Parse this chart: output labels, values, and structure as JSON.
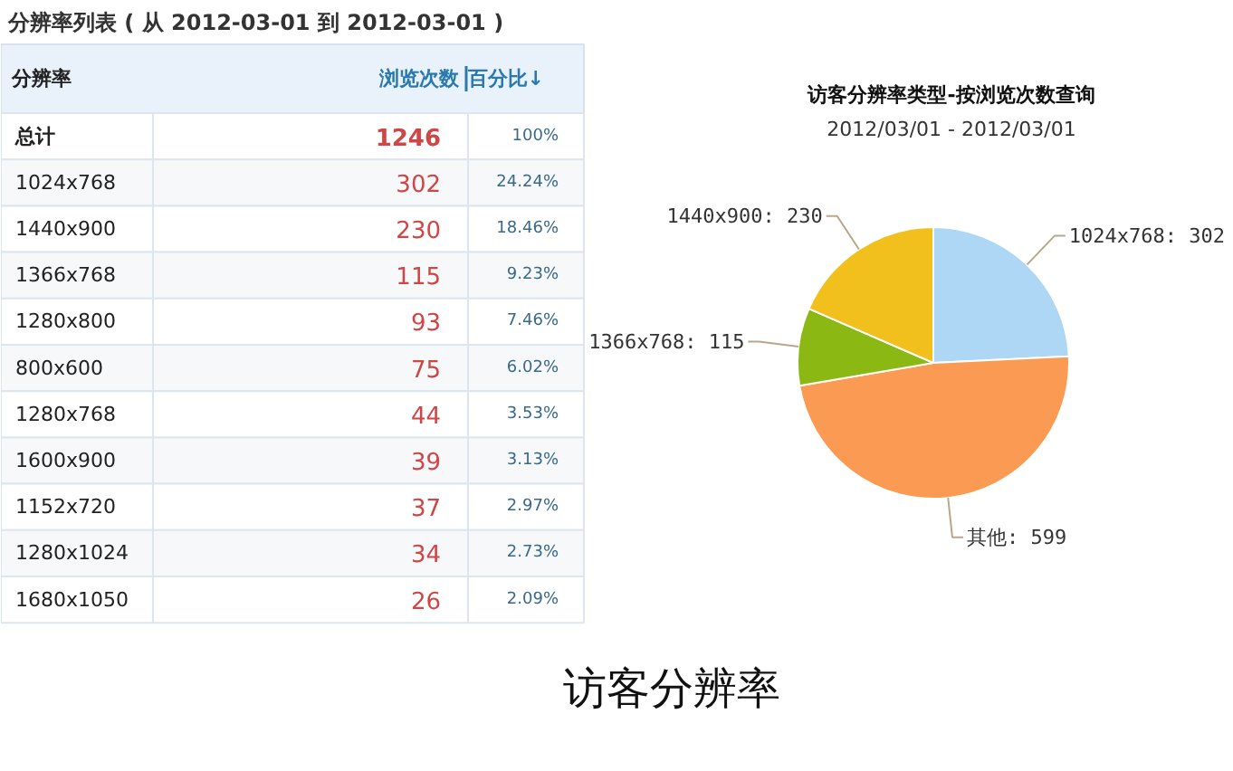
{
  "chart_data": [
    {
      "type": "other",
      "title": "分辨率列表 ( 从 2012-03-01 到 2012-03-01 )",
      "annotations": [
        "分辨率",
        "浏览次数",
        "百分比↓",
        "总计",
        "1246",
        "100%",
        "1024x768",
        "302",
        "24.24%",
        "1440x900",
        "230",
        "18.46%",
        "1366x768",
        "115",
        "9.23%",
        "1280x800",
        "93",
        "7.46%",
        "800x600",
        "75",
        "6.02%",
        "1280x768",
        "44",
        "3.53%",
        "1600x900",
        "39",
        "3.13%",
        "1152x720",
        "37",
        "2.97%",
        "1280x1024",
        "34",
        "2.73%",
        "1680x1050",
        "26",
        "2.09%"
      ]
    },
    {
      "type": "pie",
      "title": "访客分辨率类型-按浏览次数查询",
      "subtitle": "2012/03/01 - 2012/03/01",
      "categories": [
        "1024x768",
        "其他",
        "1366x768",
        "1440x900"
      ],
      "values": [
        302,
        599,
        115,
        230
      ],
      "colors": [
        "#aed6f5",
        "#fb9a52",
        "#8cb814",
        "#f2c01d"
      ],
      "value_labels": [
        ": 302",
        ": 599",
        ": 115",
        ": 230"
      ],
      "annotations": [
        "访客分辨率"
      ]
    }
  ]
}
